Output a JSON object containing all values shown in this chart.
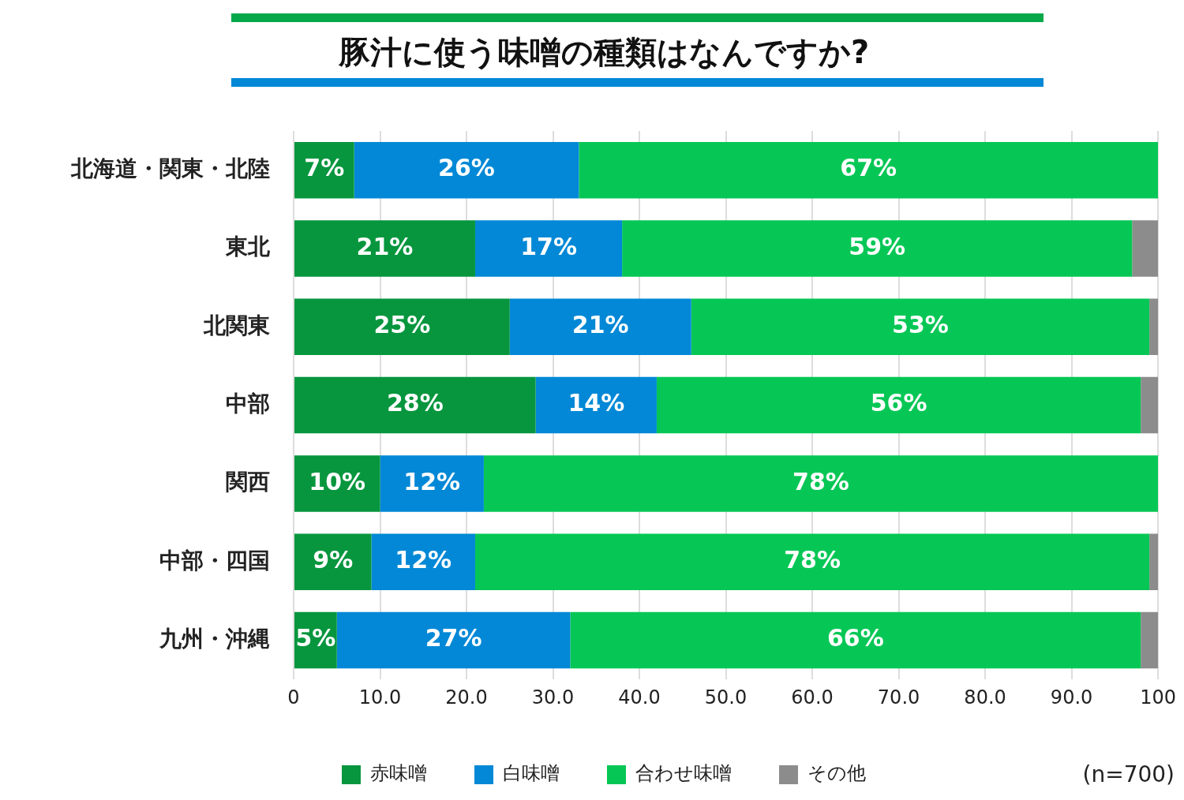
{
  "chart_data": {
    "type": "bar",
    "orientation": "horizontal",
    "stacked": true,
    "title": "豚汁に使う味噌の種類はなんですか?",
    "categories": [
      "北海道・関東・北陸",
      "東北",
      "北関東",
      "中部",
      "関西",
      "中部・四国",
      "九州・沖縄"
    ],
    "series": [
      {
        "name": "赤味噌",
        "color": "#07963e",
        "values": [
          7,
          21,
          25,
          28,
          10,
          9,
          5
        ],
        "value_labels": [
          "7%",
          "21%",
          "25%",
          "28%",
          "10%",
          "9%",
          "5%"
        ]
      },
      {
        "name": "白味噌",
        "color": "#0288d6",
        "values": [
          26,
          17,
          21,
          14,
          12,
          12,
          27
        ],
        "value_labels": [
          "26%",
          "17%",
          "21%",
          "14%",
          "12%",
          "12%",
          "27%"
        ]
      },
      {
        "name": "合わせ味噌",
        "color": "#06c755",
        "values": [
          67,
          59,
          53,
          56,
          78,
          78,
          66
        ],
        "value_labels": [
          "67%",
          "59%",
          "53%",
          "56%",
          "78%",
          "78%",
          "66%"
        ]
      },
      {
        "name": "その他",
        "color": "#8c8c8c",
        "values": [
          0,
          3,
          1,
          2,
          0,
          1,
          2
        ],
        "value_labels": [
          null,
          null,
          null,
          null,
          null,
          null,
          null
        ]
      }
    ],
    "xlim": [
      0,
      100
    ],
    "xticks": [
      0,
      {
        "value": 10,
        "label": "10.0"
      },
      {
        "value": 20,
        "label": "20.0"
      },
      {
        "value": 30,
        "label": "30.0"
      },
      {
        "value": 40,
        "label": "40.0"
      },
      {
        "value": 50,
        "label": "50.0"
      },
      {
        "value": 60,
        "label": "60.0"
      },
      {
        "value": 70,
        "label": "70.0"
      },
      {
        "value": 80,
        "label": "80.0"
      },
      {
        "value": 90,
        "label": "90.0"
      },
      100
    ],
    "grid": "x",
    "legend": "bottom",
    "annotations": [
      "(n=700)"
    ]
  }
}
